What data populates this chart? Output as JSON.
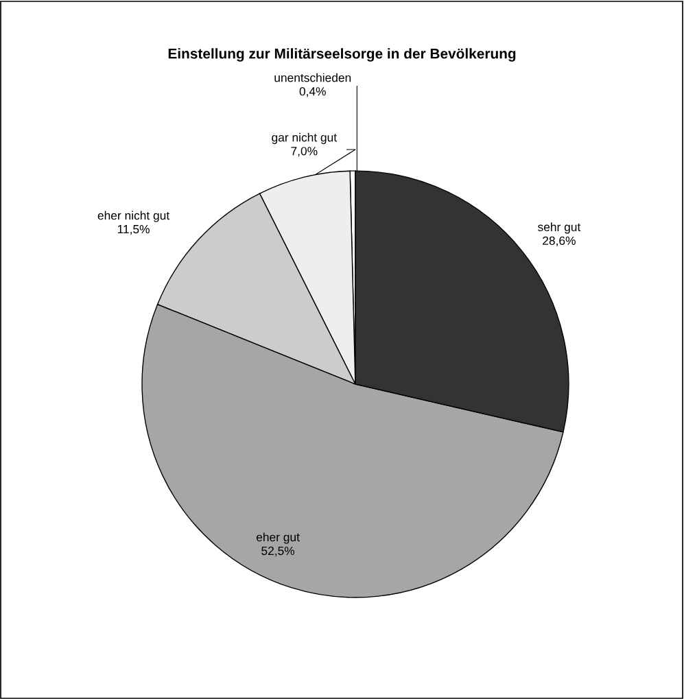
{
  "chart_data": {
    "type": "pie",
    "title": "Einstellung zur Militärseelsorge in der Bevölkerung",
    "categories": [
      "sehr gut",
      "eher gut",
      "eher nicht gut",
      "gar nicht gut",
      "unentschieden"
    ],
    "values": [
      28.6,
      52.5,
      11.5,
      7.0,
      0.4
    ],
    "value_labels": [
      "28,6%",
      "52,5%",
      "11,5%",
      "7,0%",
      "0,4%"
    ],
    "colors": [
      "#333333",
      "#a6a6a6",
      "#cccccc",
      "#eeeeee",
      "#ffffff"
    ]
  }
}
